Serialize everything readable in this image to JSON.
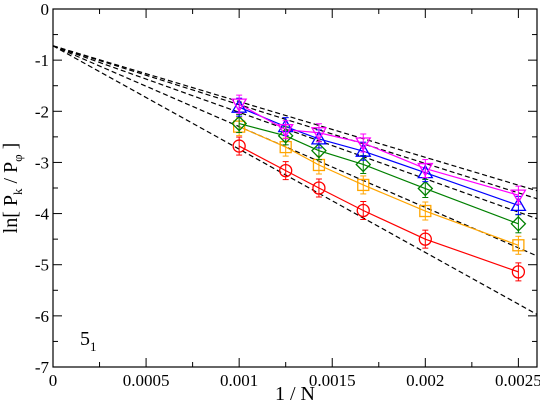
{
  "chart_data": {
    "type": "scatter",
    "xlabel": "1 / N",
    "ylabel": {
      "base": "ln[ P",
      "sub1": "k",
      "mid": " / P",
      "sub2": "φ",
      "end": " ]"
    },
    "annotation": {
      "base": "5",
      "sub": "1"
    },
    "xlim": [
      0,
      0.0026
    ],
    "ylim": [
      -7,
      0
    ],
    "xticks": [
      0,
      0.0005,
      0.001,
      0.0015,
      0.002,
      0.0025
    ],
    "xtick_labels": [
      "0",
      "0.0005",
      "0.001",
      "0.0015",
      "0.002",
      "0.0025"
    ],
    "yticks": [
      0,
      -1,
      -2,
      -3,
      -4,
      -5,
      -6,
      -7
    ],
    "ytick_labels": [
      "0",
      "-1",
      "-2",
      "-3",
      "-4",
      "-5",
      "-6",
      "-7"
    ],
    "grid": false,
    "x": [
      0.001,
      0.00125,
      0.001428571,
      0.001666667,
      0.002,
      0.0025
    ],
    "series": [
      {
        "marker": "circle",
        "color": "#ff0000",
        "values": [
          -2.68,
          -3.16,
          -3.5,
          -3.94,
          -4.5,
          -5.14
        ]
      },
      {
        "marker": "square",
        "color": "#ffa500",
        "values": [
          -2.3,
          -2.7,
          -3.05,
          -3.44,
          -3.95,
          -4.62
        ]
      },
      {
        "marker": "diamond",
        "color": "#008000",
        "values": [
          -2.24,
          -2.48,
          -2.77,
          -3.04,
          -3.51,
          -4.2
        ]
      },
      {
        "marker": "triangle-up",
        "color": "#0000ff",
        "values": [
          -1.92,
          -2.3,
          -2.54,
          -2.78,
          -3.2,
          -3.84
        ]
      },
      {
        "marker": "triangle-down",
        "color": "#ff00ff",
        "values": [
          -1.86,
          -2.36,
          -2.42,
          -2.62,
          -3.12,
          -3.64
        ]
      }
    ],
    "fit_lines": {
      "style": "dashed",
      "color": "#000000",
      "intercept": -0.72,
      "slopes": [
        -2020,
        -1580,
        -1300,
        -1150,
        -1090
      ]
    }
  }
}
